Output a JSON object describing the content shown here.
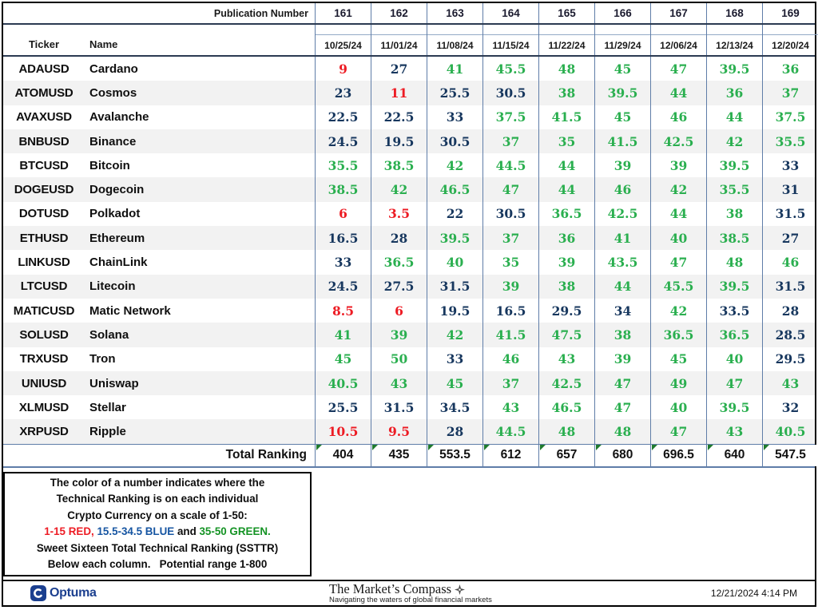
{
  "colors": {
    "red": "#ed1c24",
    "blue": "#17375e",
    "green": "#2aaf4f",
    "grid_blue": "#5f7da8",
    "stripe": "#f2f2f2",
    "dark_line": "#2b3a52",
    "total_marker_green": "#1f7a2e",
    "legend_blue": "#1655a2",
    "legend_green": "#149324",
    "optuma_navy": "#1b3f8f"
  },
  "value_thresholds": {
    "red_max": 15,
    "blue_max": 34.5
  },
  "header": {
    "publication_label": "Publication Number",
    "publication_numbers": [
      "161",
      "162",
      "163",
      "164",
      "165",
      "166",
      "167",
      "168",
      "169"
    ],
    "ticker_label": "Ticker",
    "name_label": "Name",
    "dates": [
      "10/25/24",
      "11/01/24",
      "11/08/24",
      "11/15/24",
      "11/22/24",
      "11/29/24",
      "12/06/24",
      "12/13/24",
      "12/20/24"
    ]
  },
  "rows": [
    {
      "ticker": "ADAUSD",
      "name": "Cardano",
      "values": [
        9,
        27,
        41,
        45.5,
        48,
        45,
        47,
        39.5,
        36
      ]
    },
    {
      "ticker": "ATOMUSD",
      "name": "Cosmos",
      "values": [
        23,
        11,
        25.5,
        30.5,
        38,
        39.5,
        44,
        36,
        37
      ]
    },
    {
      "ticker": "AVAXUSD",
      "name": "Avalanche",
      "values": [
        22.5,
        22.5,
        33,
        37.5,
        41.5,
        45,
        46,
        44,
        37.5
      ]
    },
    {
      "ticker": "BNBUSD",
      "name": "Binance",
      "values": [
        24.5,
        19.5,
        30.5,
        37,
        35,
        41.5,
        42.5,
        42,
        35.5
      ]
    },
    {
      "ticker": "BTCUSD",
      "name": "Bitcoin",
      "values": [
        35.5,
        38.5,
        42,
        44.5,
        44,
        39,
        39,
        39.5,
        33
      ]
    },
    {
      "ticker": "DOGEUSD",
      "name": "Dogecoin",
      "values": [
        38.5,
        42,
        46.5,
        47,
        44,
        46,
        42,
        35.5,
        31
      ]
    },
    {
      "ticker": "DOTUSD",
      "name": "Polkadot",
      "values": [
        6,
        3.5,
        22,
        30.5,
        36.5,
        42.5,
        44,
        38,
        31.5
      ]
    },
    {
      "ticker": "ETHUSD",
      "name": "Ethereum",
      "values": [
        16.5,
        28,
        39.5,
        37,
        36,
        41,
        40,
        38.5,
        27
      ]
    },
    {
      "ticker": "LINKUSD",
      "name": "ChainLink",
      "values": [
        33,
        36.5,
        40,
        35,
        39,
        43.5,
        47,
        48,
        46
      ]
    },
    {
      "ticker": "LTCUSD",
      "name": "Litecoin",
      "values": [
        24.5,
        27.5,
        31.5,
        39,
        38,
        44,
        45.5,
        39.5,
        31.5
      ]
    },
    {
      "ticker": "MATICUSD",
      "name": "Matic Network",
      "values": [
        8.5,
        6,
        19.5,
        16.5,
        29.5,
        34,
        42,
        33.5,
        28
      ]
    },
    {
      "ticker": "SOLUSD",
      "name": "Solana",
      "values": [
        41,
        39,
        42,
        41.5,
        47.5,
        38,
        36.5,
        36.5,
        28.5
      ]
    },
    {
      "ticker": "TRXUSD",
      "name": "Tron",
      "values": [
        45,
        50,
        33,
        46,
        43,
        39,
        45,
        40,
        29.5
      ]
    },
    {
      "ticker": "UNIUSD",
      "name": "Uniswap",
      "values": [
        40.5,
        43,
        45,
        37,
        42.5,
        47,
        49,
        47,
        43
      ]
    },
    {
      "ticker": "XLMUSD",
      "name": "Stellar",
      "values": [
        25.5,
        31.5,
        34.5,
        43,
        46.5,
        47,
        40,
        39.5,
        32
      ]
    },
    {
      "ticker": "XRPUSD",
      "name": "Ripple",
      "values": [
        10.5,
        9.5,
        28,
        44.5,
        48,
        48,
        47,
        43,
        40.5
      ]
    }
  ],
  "total": {
    "label": "Total Ranking",
    "values": [
      404,
      435,
      553.5,
      612,
      657,
      680,
      696.5,
      640,
      547.5
    ]
  },
  "legend": {
    "line1": "The color of a number indicates where the",
    "line2": "Technical Ranking is on each individual",
    "line3": "Crypto Currency on a scale of 1-50:",
    "line4_red": "1-15 RED,",
    "line4_sep1": " ",
    "line4_blue": "15.5-34.5 BLUE",
    "line4_and": " and ",
    "line4_green": "35-50 GREEN.",
    "line5": "Sweet Sixteen Total Technical Ranking (SSTTR)",
    "line6": "Below each column.   Potential range 1-800"
  },
  "footer": {
    "optuma_text": "Optuma",
    "compass_title": "The Market’s Compass",
    "compass_tagline": "Navigating the waters of global financial markets",
    "timestamp": "12/21/2024 4:14 PM"
  }
}
